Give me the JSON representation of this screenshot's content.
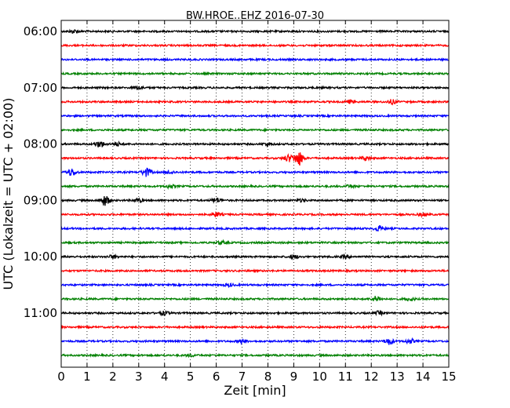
{
  "chart_data": {
    "type": "line",
    "title": "BW.HROE..EHZ 2016-07-30",
    "xlabel": "Zeit  [min]",
    "ylabel": "UTC (Lokalzeit = UTC + 02:00)",
    "xlim": [
      0,
      15
    ],
    "x_ticks": [
      0,
      1,
      2,
      3,
      4,
      5,
      6,
      7,
      8,
      9,
      10,
      11,
      12,
      13,
      14,
      15
    ],
    "x_tick_labels": [
      "0",
      "1",
      "2",
      "3",
      "4",
      "5",
      "6",
      "7",
      "8",
      "9",
      "10",
      "11",
      "12",
      "13",
      "14",
      "15"
    ],
    "y_tick_labels": [
      "06:00",
      "07:00",
      "08:00",
      "09:00",
      "10:00",
      "11:00"
    ],
    "grid": "vertical dotted",
    "trace_colors": [
      "#000000",
      "#ff0000",
      "#0000ff",
      "#008000"
    ],
    "traces": [
      {
        "start": "06:00",
        "color": "#000000",
        "bursts": [
          [
            0.5,
            0.6
          ]
        ]
      },
      {
        "start": "06:15",
        "color": "#ff0000",
        "bursts": []
      },
      {
        "start": "06:30",
        "color": "#0000ff",
        "bursts": []
      },
      {
        "start": "06:45",
        "color": "#008000",
        "bursts": []
      },
      {
        "start": "07:00",
        "color": "#000000",
        "bursts": [
          [
            3.0,
            0.6
          ]
        ]
      },
      {
        "start": "07:15",
        "color": "#ff0000",
        "bursts": [
          [
            11.2,
            0.6
          ],
          [
            12.8,
            0.8
          ]
        ]
      },
      {
        "start": "07:30",
        "color": "#0000ff",
        "bursts": []
      },
      {
        "start": "07:45",
        "color": "#008000",
        "bursts": []
      },
      {
        "start": "08:00",
        "color": "#000000",
        "bursts": [
          [
            1.5,
            1.2
          ],
          [
            2.2,
            0.6
          ],
          [
            8.0,
            0.5
          ]
        ]
      },
      {
        "start": "08:15",
        "color": "#ff0000",
        "bursts": [
          [
            9.2,
            2.8
          ],
          [
            8.8,
            1.3
          ],
          [
            11.8,
            0.7
          ]
        ]
      },
      {
        "start": "08:30",
        "color": "#0000ff",
        "bursts": [
          [
            0.4,
            1.3
          ],
          [
            3.3,
            1.6
          ],
          [
            4.2,
            0.6
          ]
        ]
      },
      {
        "start": "08:45",
        "color": "#008000",
        "bursts": [
          [
            4.2,
            0.6
          ],
          [
            11.2,
            0.5
          ]
        ]
      },
      {
        "start": "09:00",
        "color": "#000000",
        "bursts": [
          [
            1.7,
            2.0
          ],
          [
            3.0,
            0.6
          ],
          [
            6.0,
            0.9
          ],
          [
            9.3,
            0.5
          ]
        ]
      },
      {
        "start": "09:15",
        "color": "#ff0000",
        "bursts": [
          [
            6.0,
            0.7
          ],
          [
            14.0,
            0.6
          ]
        ]
      },
      {
        "start": "09:30",
        "color": "#0000ff",
        "bursts": [
          [
            12.3,
            1.0
          ]
        ]
      },
      {
        "start": "09:45",
        "color": "#008000",
        "bursts": [
          [
            6.2,
            0.6
          ]
        ]
      },
      {
        "start": "10:00",
        "color": "#000000",
        "bursts": [
          [
            2.0,
            0.6
          ],
          [
            9.0,
            0.7
          ],
          [
            11.0,
            0.6
          ]
        ]
      },
      {
        "start": "10:15",
        "color": "#ff0000",
        "bursts": []
      },
      {
        "start": "10:30",
        "color": "#0000ff",
        "bursts": [
          [
            6.5,
            0.5
          ]
        ]
      },
      {
        "start": "10:45",
        "color": "#008000",
        "bursts": [
          [
            12.2,
            1.0
          ],
          [
            13.5,
            0.6
          ]
        ]
      },
      {
        "start": "11:00",
        "color": "#000000",
        "bursts": [
          [
            4.0,
            0.7
          ],
          [
            12.3,
            0.6
          ]
        ]
      },
      {
        "start": "11:15",
        "color": "#ff0000",
        "bursts": []
      },
      {
        "start": "11:30",
        "color": "#0000ff",
        "bursts": [
          [
            7.0,
            0.7
          ],
          [
            12.7,
            1.2
          ],
          [
            13.5,
            0.8
          ]
        ]
      },
      {
        "start": "11:45",
        "color": "#008000",
        "bursts": [
          [
            5.0,
            0.4
          ]
        ]
      }
    ]
  }
}
